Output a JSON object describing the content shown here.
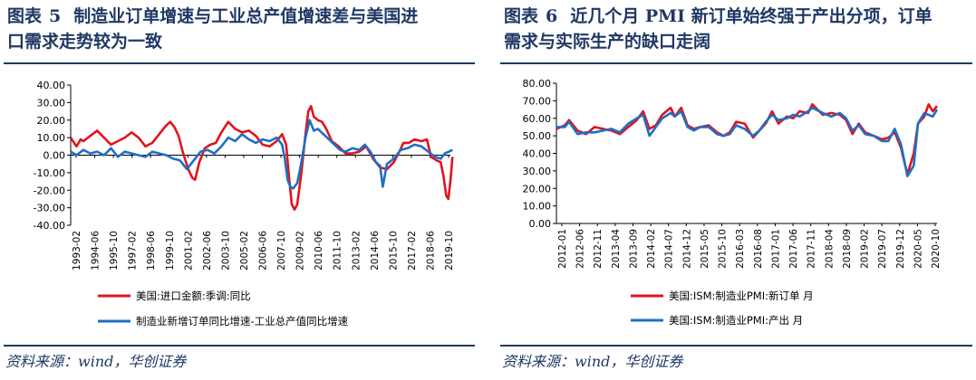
{
  "left": {
    "title_prefix": "图表",
    "title_num": "5",
    "title_text_line1": "制造业订单增速与工业总产值增速差与美国进",
    "title_text_line2": "口需求走势较为一致",
    "source": "资料来源：wind，华创证券"
  },
  "right": {
    "title_prefix": "图表",
    "title_num": "6",
    "title_text_line1": "近几个月 PMI 新订单始终强于产出分项，订单",
    "title_text_line2": "需求与实际生产的缺口走阔",
    "source": "资料来源：wind，华创证券"
  },
  "colors": {
    "red": "#e0141e",
    "blue": "#1f6fc4",
    "navy": "#1f3864"
  },
  "chart_data": [
    {
      "type": "line",
      "y_ticks": [
        "40.00",
        "30.00",
        "20.00",
        "10.00",
        "0.00",
        "-10.00",
        "-20.00",
        "-30.00",
        "-40.00"
      ],
      "ylim": [
        -40,
        40
      ],
      "x_ticks": [
        "1993-02",
        "1994-06",
        "1995-10",
        "1997-02",
        "1998-06",
        "1999-10",
        "2001-02",
        "2002-06",
        "2003-10",
        "2005-02",
        "2006-06",
        "2007-10",
        "2009-02",
        "2010-06",
        "2011-10",
        "2013-02",
        "2014-06",
        "2015-10",
        "2017-02",
        "2018-06",
        "2019-10"
      ],
      "x_range": [
        1993.08,
        2020.6
      ],
      "series": [
        {
          "name": "美国:进口金额:季调:同比",
          "color": "#e0141e",
          "points": [
            [
              1993.08,
              10
            ],
            [
              1993.5,
              5
            ],
            [
              1993.8,
              9
            ],
            [
              1994.0,
              8
            ],
            [
              1994.5,
              11
            ],
            [
              1995.0,
              14
            ],
            [
              1995.5,
              10
            ],
            [
              1996.0,
              6
            ],
            [
              1996.5,
              8
            ],
            [
              1997.0,
              10
            ],
            [
              1997.5,
              13
            ],
            [
              1998.0,
              10
            ],
            [
              1998.5,
              5
            ],
            [
              1999.0,
              7
            ],
            [
              1999.5,
              12
            ],
            [
              2000.0,
              17
            ],
            [
              2000.3,
              19
            ],
            [
              2000.6,
              16
            ],
            [
              2000.9,
              11
            ],
            [
              2001.2,
              2
            ],
            [
              2001.6,
              -8
            ],
            [
              2001.9,
              -13
            ],
            [
              2002.1,
              -14
            ],
            [
              2002.4,
              -4
            ],
            [
              2002.8,
              4
            ],
            [
              2003.2,
              6
            ],
            [
              2003.6,
              7
            ],
            [
              2004.0,
              13
            ],
            [
              2004.5,
              19
            ],
            [
              2005.0,
              15
            ],
            [
              2005.5,
              13
            ],
            [
              2006.0,
              14
            ],
            [
              2006.5,
              11
            ],
            [
              2007.0,
              6
            ],
            [
              2007.5,
              5
            ],
            [
              2008.0,
              8
            ],
            [
              2008.4,
              12
            ],
            [
              2008.7,
              6
            ],
            [
              2008.9,
              -12
            ],
            [
              2009.1,
              -28
            ],
            [
              2009.3,
              -31
            ],
            [
              2009.5,
              -28
            ],
            [
              2009.8,
              -10
            ],
            [
              2010.1,
              12
            ],
            [
              2010.3,
              25
            ],
            [
              2010.5,
              28
            ],
            [
              2010.7,
              22
            ],
            [
              2011.0,
              20
            ],
            [
              2011.3,
              19
            ],
            [
              2011.6,
              15
            ],
            [
              2012.0,
              8
            ],
            [
              2012.5,
              5
            ],
            [
              2013.0,
              1
            ],
            [
              2013.5,
              1
            ],
            [
              2014.0,
              2
            ],
            [
              2014.5,
              5
            ],
            [
              2015.0,
              -2
            ],
            [
              2015.5,
              -7
            ],
            [
              2016.0,
              -8
            ],
            [
              2016.5,
              -4
            ],
            [
              2016.9,
              2
            ],
            [
              2017.2,
              7
            ],
            [
              2017.6,
              7
            ],
            [
              2018.0,
              9
            ],
            [
              2018.5,
              8
            ],
            [
              2018.9,
              9
            ],
            [
              2019.2,
              -1
            ],
            [
              2019.6,
              -3
            ],
            [
              2019.9,
              -4
            ],
            [
              2020.1,
              -12
            ],
            [
              2020.3,
              -23
            ],
            [
              2020.45,
              -25
            ],
            [
              2020.6,
              -15
            ],
            [
              2020.75,
              -1
            ]
          ]
        },
        {
          "name": "制造业新增订单同比增速-工业总产值同比增速",
          "color": "#1f6fc4",
          "points": [
            [
              1993.08,
              2
            ],
            [
              1993.5,
              0
            ],
            [
              1994.0,
              3
            ],
            [
              1994.5,
              1
            ],
            [
              1995.0,
              2
            ],
            [
              1995.5,
              0
            ],
            [
              1996.0,
              4
            ],
            [
              1996.5,
              -1
            ],
            [
              1997.0,
              2
            ],
            [
              1997.5,
              1
            ],
            [
              1998.0,
              0
            ],
            [
              1998.5,
              -1
            ],
            [
              1999.0,
              2
            ],
            [
              1999.5,
              1
            ],
            [
              2000.0,
              0
            ],
            [
              2000.5,
              -2
            ],
            [
              2001.0,
              -3
            ],
            [
              2001.5,
              -8
            ],
            [
              2002.0,
              -3
            ],
            [
              2002.5,
              2
            ],
            [
              2003.0,
              3
            ],
            [
              2003.5,
              1
            ],
            [
              2004.0,
              5
            ],
            [
              2004.5,
              10
            ],
            [
              2005.0,
              8
            ],
            [
              2005.5,
              12
            ],
            [
              2006.0,
              9
            ],
            [
              2006.5,
              7
            ],
            [
              2007.0,
              9
            ],
            [
              2007.5,
              8
            ],
            [
              2008.0,
              10
            ],
            [
              2008.4,
              6
            ],
            [
              2008.6,
              -2
            ],
            [
              2008.8,
              -14
            ],
            [
              2009.0,
              -18
            ],
            [
              2009.2,
              -19
            ],
            [
              2009.5,
              -16
            ],
            [
              2009.8,
              -4
            ],
            [
              2010.1,
              10
            ],
            [
              2010.4,
              20
            ],
            [
              2010.7,
              14
            ],
            [
              2011.0,
              15
            ],
            [
              2011.4,
              12
            ],
            [
              2011.8,
              9
            ],
            [
              2012.2,
              6
            ],
            [
              2012.6,
              3
            ],
            [
              2013.0,
              2
            ],
            [
              2013.5,
              4
            ],
            [
              2014.0,
              3
            ],
            [
              2014.4,
              6
            ],
            [
              2014.8,
              2
            ],
            [
              2015.2,
              -4
            ],
            [
              2015.5,
              -6
            ],
            [
              2015.7,
              -18
            ],
            [
              2016.0,
              -5
            ],
            [
              2016.5,
              -2
            ],
            [
              2017.0,
              3
            ],
            [
              2017.5,
              4
            ],
            [
              2018.0,
              6
            ],
            [
              2018.5,
              5
            ],
            [
              2019.0,
              2
            ],
            [
              2019.5,
              -1
            ],
            [
              2019.9,
              -2
            ],
            [
              2020.2,
              1
            ],
            [
              2020.5,
              2
            ],
            [
              2020.75,
              3
            ]
          ]
        }
      ]
    },
    {
      "type": "line",
      "y_ticks": [
        "80.00",
        "70.00",
        "60.00",
        "50.00",
        "40.00",
        "30.00",
        "20.00",
        "10.00",
        "0.00"
      ],
      "ylim": [
        0,
        80
      ],
      "x_ticks": [
        "2012-01",
        "2012-06",
        "2012-11",
        "2013-04",
        "2013-09",
        "2014-02",
        "2014-07",
        "2014-12",
        "2015-05",
        "2015-10",
        "2016-03",
        "2016-08",
        "2017-01",
        "2017-06",
        "2017-11",
        "2018-04",
        "2018-09",
        "2019-02",
        "2019-07",
        "2019-12",
        "2020-05",
        "2020-10"
      ],
      "x_range": [
        2012.0,
        2021.0
      ],
      "series": [
        {
          "name": "美国:ISM:制造业PMI:新订单 月",
          "color": "#e0141e",
          "points": [
            [
              2012.0,
              54
            ],
            [
              2012.2,
              56
            ],
            [
              2012.3,
              59
            ],
            [
              2012.5,
              53
            ],
            [
              2012.7,
              51
            ],
            [
              2012.9,
              55
            ],
            [
              2013.1,
              54
            ],
            [
              2013.3,
              53
            ],
            [
              2013.5,
              51
            ],
            [
              2013.7,
              55
            ],
            [
              2013.9,
              59
            ],
            [
              2014.05,
              64
            ],
            [
              2014.2,
              54
            ],
            [
              2014.35,
              56
            ],
            [
              2014.5,
              62
            ],
            [
              2014.7,
              66
            ],
            [
              2014.8,
              61
            ],
            [
              2014.95,
              66
            ],
            [
              2015.1,
              56
            ],
            [
              2015.25,
              54
            ],
            [
              2015.4,
              55
            ],
            [
              2015.6,
              56
            ],
            [
              2015.8,
              52
            ],
            [
              2015.95,
              50
            ],
            [
              2016.1,
              52
            ],
            [
              2016.25,
              58
            ],
            [
              2016.45,
              57
            ],
            [
              2016.65,
              49
            ],
            [
              2016.8,
              53
            ],
            [
              2016.95,
              57
            ],
            [
              2017.1,
              64
            ],
            [
              2017.25,
              57
            ],
            [
              2017.45,
              61
            ],
            [
              2017.6,
              60
            ],
            [
              2017.75,
              64
            ],
            [
              2017.95,
              63
            ],
            [
              2018.05,
              68
            ],
            [
              2018.3,
              62
            ],
            [
              2018.5,
              63
            ],
            [
              2018.7,
              62
            ],
            [
              2018.85,
              59
            ],
            [
              2019.0,
              51
            ],
            [
              2019.15,
              57
            ],
            [
              2019.3,
              52
            ],
            [
              2019.5,
              50
            ],
            [
              2019.7,
              48
            ],
            [
              2019.85,
              49
            ],
            [
              2020.0,
              52
            ],
            [
              2020.15,
              43
            ],
            [
              2020.3,
              28
            ],
            [
              2020.45,
              40
            ],
            [
              2020.55,
              57
            ],
            [
              2020.7,
              61
            ],
            [
              2020.8,
              68
            ],
            [
              2020.9,
              64
            ],
            [
              2021.0,
              67
            ]
          ]
        },
        {
          "name": "美国:ISM:制造业PMI:产出 月",
          "color": "#1f6fc4",
          "points": [
            [
              2012.0,
              55
            ],
            [
              2012.2,
              55
            ],
            [
              2012.3,
              58
            ],
            [
              2012.5,
              51
            ],
            [
              2012.7,
              52
            ],
            [
              2012.9,
              52
            ],
            [
              2013.1,
              53
            ],
            [
              2013.3,
              54
            ],
            [
              2013.5,
              52
            ],
            [
              2013.7,
              57
            ],
            [
              2013.9,
              60
            ],
            [
              2014.05,
              62
            ],
            [
              2014.2,
              50
            ],
            [
              2014.35,
              55
            ],
            [
              2014.5,
              60
            ],
            [
              2014.7,
              63
            ],
            [
              2014.8,
              61
            ],
            [
              2014.95,
              64
            ],
            [
              2015.1,
              55
            ],
            [
              2015.25,
              53
            ],
            [
              2015.4,
              55
            ],
            [
              2015.6,
              55
            ],
            [
              2015.8,
              51
            ],
            [
              2015.95,
              50
            ],
            [
              2016.1,
              51
            ],
            [
              2016.25,
              56
            ],
            [
              2016.45,
              54
            ],
            [
              2016.65,
              50
            ],
            [
              2016.8,
              53
            ],
            [
              2016.95,
              58
            ],
            [
              2017.1,
              62
            ],
            [
              2017.25,
              59
            ],
            [
              2017.45,
              60
            ],
            [
              2017.6,
              62
            ],
            [
              2017.75,
              61
            ],
            [
              2017.95,
              64
            ],
            [
              2018.05,
              66
            ],
            [
              2018.3,
              63
            ],
            [
              2018.5,
              61
            ],
            [
              2018.7,
              63
            ],
            [
              2018.85,
              60
            ],
            [
              2019.0,
              53
            ],
            [
              2019.15,
              56
            ],
            [
              2019.3,
              51
            ],
            [
              2019.5,
              50
            ],
            [
              2019.7,
              47
            ],
            [
              2019.85,
              47
            ],
            [
              2020.0,
              54
            ],
            [
              2020.15,
              45
            ],
            [
              2020.3,
              27
            ],
            [
              2020.45,
              33
            ],
            [
              2020.55,
              57
            ],
            [
              2020.7,
              63
            ],
            [
              2020.8,
              62
            ],
            [
              2020.9,
              61
            ],
            [
              2021.0,
              65
            ]
          ]
        }
      ]
    }
  ]
}
